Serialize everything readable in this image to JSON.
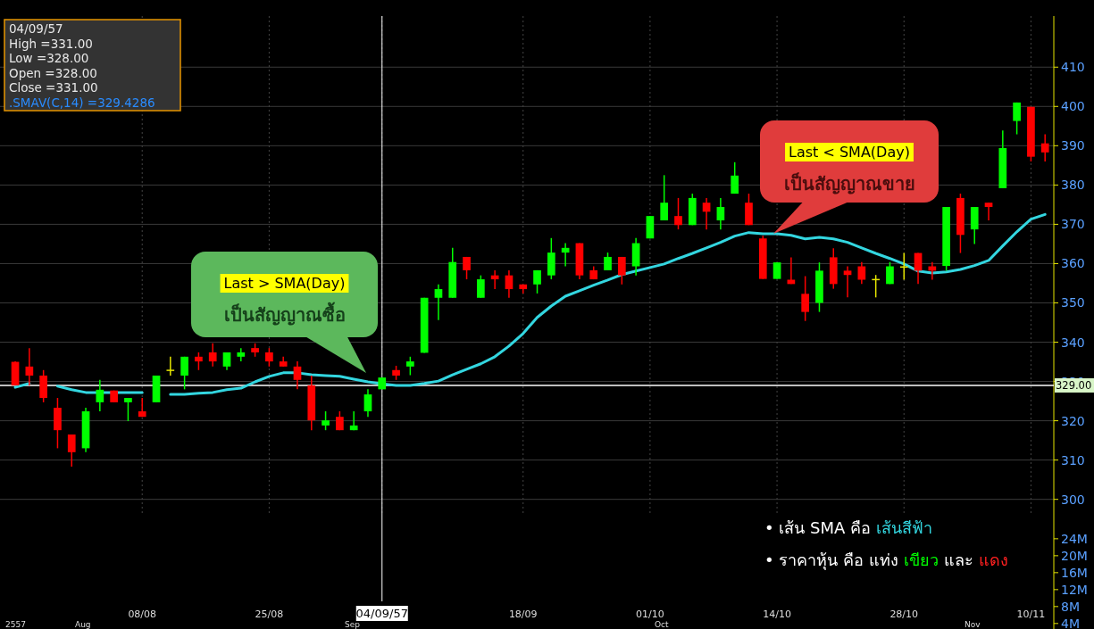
{
  "chart_data": [
    {
      "type": "candlestick",
      "categories": [
        null,
        null,
        null,
        null,
        null,
        null,
        null,
        null,
        null,
        "08/08",
        null,
        null,
        null,
        null,
        null,
        null,
        null,
        null,
        "25/08",
        null,
        null,
        null,
        null,
        null,
        null,
        null,
        "04/09/57",
        null,
        null,
        null,
        null,
        null,
        null,
        null,
        null,
        null,
        "18/09",
        null,
        null,
        null,
        null,
        null,
        null,
        null,
        null,
        "01/10",
        null,
        null,
        null,
        null,
        null,
        null,
        null,
        null,
        "14/10",
        null,
        null,
        null,
        null,
        null,
        null,
        null,
        null,
        "28/10",
        null,
        null,
        null,
        null,
        null,
        null,
        null,
        null,
        "10/11",
        null
      ],
      "ohlc": [
        [
          335,
          335.1,
          329,
          329
        ],
        [
          333.8,
          338.5,
          329,
          331.5
        ],
        [
          331.5,
          332.9,
          324.7,
          325.8
        ],
        [
          323.3,
          325.8,
          313,
          317.6
        ],
        [
          316.5,
          316.5,
          308.3,
          312
        ],
        [
          313,
          323.3,
          312,
          322.4
        ],
        [
          324.7,
          330.4,
          322.4,
          327.9
        ],
        [
          327.7,
          327.7,
          324.7,
          324.7
        ],
        [
          324.7,
          325.8,
          319.9,
          325.8
        ],
        [
          322.4,
          325.8,
          321,
          321
        ],
        [
          324.7,
          331.5,
          324.7,
          331.5
        ],
        [
          333,
          336.3,
          331.5,
          333
        ],
        [
          331.5,
          336.3,
          328,
          336.3
        ],
        [
          336.3,
          337.4,
          332.9,
          335.1
        ],
        [
          337.4,
          339.7,
          333.8,
          335.1
        ],
        [
          333.8,
          337.4,
          332.9,
          337.4
        ],
        [
          336.3,
          338.5,
          335.1,
          337.4
        ],
        [
          338.5,
          339.7,
          336.3,
          337.4
        ],
        [
          337.4,
          338.5,
          333.8,
          335.1
        ],
        [
          335.1,
          336.3,
          333.8,
          333.8
        ],
        [
          333.8,
          335.1,
          328,
          330.4
        ],
        [
          329,
          331.5,
          317.6,
          320.1
        ],
        [
          318.8,
          322.4,
          317.6,
          320.1
        ],
        [
          321,
          322.4,
          317.6,
          317.6
        ],
        [
          317.6,
          322.4,
          317.6,
          318.8
        ],
        [
          322.4,
          328,
          321,
          326.7
        ],
        [
          328,
          331,
          328,
          331
        ],
        [
          332.9,
          334,
          330.4,
          331.5
        ],
        [
          333.8,
          336.3,
          331.6,
          335.1
        ],
        [
          337.3,
          351.3,
          337.3,
          351.3
        ],
        [
          351.3,
          354.7,
          345.6,
          353.5
        ],
        [
          351.3,
          364,
          351.3,
          360.4
        ],
        [
          361.7,
          361.7,
          356,
          358.3
        ],
        [
          351.3,
          357,
          351.3,
          356
        ],
        [
          357,
          358.3,
          353.5,
          356
        ],
        [
          357,
          358.3,
          351.3,
          353.5
        ],
        [
          354.7,
          354.7,
          352.4,
          353.5
        ],
        [
          354.7,
          358.3,
          352.4,
          358.3
        ],
        [
          357,
          366.5,
          356,
          362.8
        ],
        [
          362.8,
          365.2,
          359.3,
          364
        ],
        [
          365.2,
          365.2,
          356,
          357
        ],
        [
          358.3,
          359.3,
          356,
          356
        ],
        [
          358.3,
          362.8,
          358.3,
          361.7
        ],
        [
          361.7,
          361.7,
          354.7,
          357
        ],
        [
          359.3,
          366.5,
          357,
          365.2
        ],
        [
          366.4,
          372.1,
          366.4,
          372.1
        ],
        [
          371,
          382.5,
          371,
          375.5
        ],
        [
          372.1,
          376.7,
          368.7,
          369.8
        ],
        [
          369.8,
          377.8,
          369.8,
          376.7
        ],
        [
          375.5,
          376.7,
          368.7,
          373.2
        ],
        [
          371,
          376.7,
          368.7,
          374.4
        ],
        [
          377.8,
          385.8,
          377.8,
          382.4
        ],
        [
          375.5,
          377.8,
          369.8,
          369.8
        ],
        [
          366.4,
          367.1,
          356.1,
          356.1
        ],
        [
          356.1,
          360.3,
          356.1,
          360.3
        ],
        [
          355.9,
          361.6,
          354.8,
          354.8
        ],
        [
          352.3,
          356.8,
          345.4,
          347.7
        ],
        [
          350,
          360.3,
          347.7,
          358.2
        ],
        [
          361.6,
          363.9,
          353.6,
          354.8
        ],
        [
          358.2,
          359.3,
          351.4,
          357.1
        ],
        [
          359.3,
          360.4,
          354.8,
          355.9
        ],
        [
          356.1,
          357.1,
          351.4,
          356.1
        ],
        [
          354.8,
          360.4,
          354.8,
          359.3
        ],
        [
          359.3,
          362.7,
          355.9,
          359.3
        ],
        [
          362.7,
          362.7,
          354.8,
          358.2
        ],
        [
          359.3,
          360.4,
          355.9,
          358.2
        ],
        [
          359.4,
          374.4,
          358.2,
          374.4
        ],
        [
          376.7,
          377.8,
          362.7,
          367.3
        ],
        [
          368.7,
          374.4,
          365,
          374.4
        ],
        [
          375.5,
          375.5,
          371,
          374.4
        ],
        [
          379.2,
          393.9,
          379.2,
          389.4
        ],
        [
          396.3,
          401,
          392.9,
          401
        ],
        [
          399.9,
          399.9,
          386,
          387.2
        ],
        [
          390.6,
          392.9,
          386,
          388.3
        ]
      ],
      "colors": [
        "#ff0000",
        "#ff0000",
        "#ff0000",
        "#ff0000",
        "#ff0000",
        "#00ff00",
        "#00ff00",
        "#ff0000",
        "#00ff00",
        "#ff0000",
        "#00ff00",
        "#e6e600",
        "#00ff00",
        "#ff0000",
        "#ff0000",
        "#00ff00",
        "#00ff00",
        "#ff0000",
        "#ff0000",
        "#ff0000",
        "#ff0000",
        "#ff0000",
        "#00ff00",
        "#ff0000",
        "#00ff00",
        "#00ff00",
        "#00ff00",
        "#ff0000",
        "#00ff00",
        "#00ff00",
        "#00ff00",
        "#00ff00",
        "#ff0000",
        "#00ff00",
        "#ff0000",
        "#ff0000",
        "#ff0000",
        "#00ff00",
        "#00ff00",
        "#00ff00",
        "#ff0000",
        "#ff0000",
        "#00ff00",
        "#ff0000",
        "#00ff00",
        "#00ff00",
        "#00ff00",
        "#ff0000",
        "#00ff00",
        "#ff0000",
        "#00ff00",
        "#00ff00",
        "#ff0000",
        "#ff0000",
        "#00ff00",
        "#ff0000",
        "#ff0000",
        "#00ff00",
        "#ff0000",
        "#ff0000",
        "#ff0000",
        "#e6e600",
        "#00ff00",
        "#e6e600",
        "#ff0000",
        "#ff0000",
        "#00ff00",
        "#ff0000",
        "#00ff00",
        "#ff0000",
        "#00ff00",
        "#00ff00",
        "#ff0000",
        "#ff0000"
      ],
      "series": [
        {
          "type": "line",
          "color": "#33d6e0",
          "values": [
            328.5,
            329.5,
            null,
            328.8,
            327.9,
            327.2,
            327.2,
            327.2,
            327.2,
            327.2,
            null,
            326.7,
            326.7,
            327,
            327.2,
            327.9,
            328.3,
            329.9,
            331.3,
            332.2,
            332.2,
            331.7,
            331.5,
            331.3,
            330.6,
            329.9,
            329.4,
            329,
            329,
            329.5,
            330.1,
            331.7,
            333.1,
            334.5,
            336.3,
            339,
            342.2,
            346.3,
            349.2,
            351.7,
            353.1,
            354.5,
            355.8,
            357.2,
            358.1,
            359,
            359.9,
            361.3,
            362.6,
            364,
            365.4,
            367,
            367.9,
            367.6,
            367.6,
            367.2,
            366.3,
            366.7,
            366.3,
            365.4,
            364,
            362.6,
            361.3,
            359.9,
            358.1,
            357.6,
            357.9,
            358.5,
            359.5,
            360.8,
            364.5,
            368.1,
            371.3,
            372.5
          ]
        }
      ],
      "ylim": [
        267,
        423
      ],
      "yticks": [
        300,
        310,
        320,
        330,
        340,
        350,
        360,
        370,
        380,
        390,
        400,
        410
      ],
      "grid": true,
      "ref_lines": [
        {
          "axis": "y",
          "value": 329,
          "label": "329.00",
          "color": "#ffffff"
        },
        {
          "axis": "x",
          "value": "04/09/57",
          "color": "#ffffff"
        }
      ],
      "annotations": [
        "04/09/57",
        "High  =331.00",
        "Low  =328.00",
        "Open  =328.00",
        "Close  =331.00",
        ".SMAV(C,14)   =329.4286",
        "Last  >  SMA(Day)",
        "เป็นสัญญาณซื้อ",
        "Last  <  SMA(Day)",
        "เป็นสัญญาณขาย",
        "• เส้น SMA  คือ",
        "เส้นสีฟ้า",
        "• ราคาหุ้น     คือ แท่ง",
        "เขียว",
        "และ",
        "แดง",
        "2557",
        "Aug",
        "Sep",
        "Oct",
        "Nov"
      ],
      "y2lim": [
        2.7,
        147.4
      ],
      "y2ticks": [
        {
          "value": 4,
          "label": "4M"
        },
        {
          "value": 8,
          "label": "8M"
        },
        {
          "value": 12,
          "label": "12M"
        },
        {
          "value": 16,
          "label": "16M"
        },
        {
          "value": 20,
          "label": "20M"
        },
        {
          "value": 24,
          "label": "24M"
        }
      ]
    }
  ]
}
